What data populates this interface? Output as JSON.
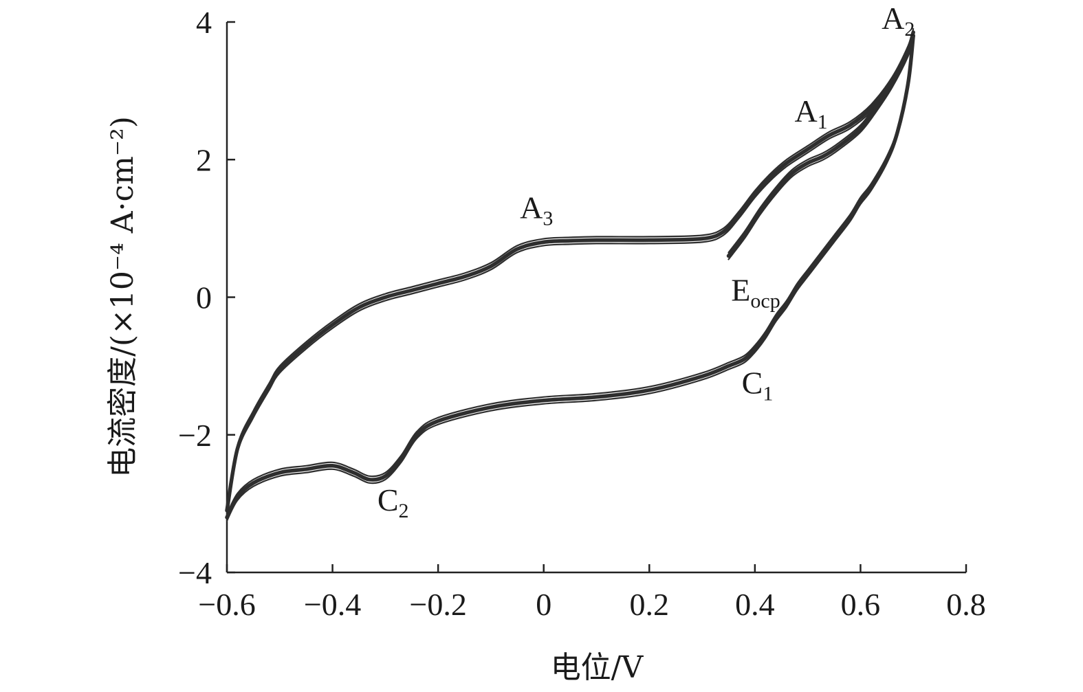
{
  "chart_data": {
    "type": "line",
    "title": "",
    "xlabel": "电位/V",
    "ylabel": "电流密度/(×10⁻⁴ A·cm⁻²)",
    "xlim": [
      -0.6,
      0.8
    ],
    "ylim": [
      -4,
      4
    ],
    "x_ticks": [
      "−0.6",
      "−0.4",
      "−0.2",
      "0",
      "0.2",
      "0.4",
      "0.6",
      "0.8"
    ],
    "y_ticks": [
      "−4",
      "−2",
      "0",
      "2",
      "4"
    ],
    "grid": false,
    "legend": "none",
    "series": [
      {
        "x": [
          0.35,
          0.38,
          0.41,
          0.44,
          0.47,
          0.5,
          0.53,
          0.56,
          0.6,
          0.63,
          0.66,
          0.69,
          0.7
        ],
        "y": [
          0.6,
          0.9,
          1.25,
          1.55,
          1.8,
          1.95,
          2.05,
          2.2,
          2.45,
          2.75,
          3.1,
          3.55,
          3.8
        ]
      },
      {
        "x": [
          0.7,
          0.69,
          0.67,
          0.65,
          0.62,
          0.6,
          0.58,
          0.55,
          0.52,
          0.5,
          0.48,
          0.46,
          0.44,
          0.42,
          0.4,
          0.38,
          0.35,
          0.3,
          0.2,
          0.1,
          0.0,
          -0.1,
          -0.2,
          -0.24,
          -0.27,
          -0.3,
          -0.33,
          -0.36,
          -0.4,
          -0.45,
          -0.5,
          -0.55,
          -0.58,
          -0.6
        ],
        "y": [
          3.8,
          3.1,
          2.4,
          2.0,
          1.6,
          1.4,
          1.15,
          0.85,
          0.55,
          0.35,
          0.15,
          -0.1,
          -0.3,
          -0.55,
          -0.75,
          -0.9,
          -1.0,
          -1.15,
          -1.35,
          -1.45,
          -1.5,
          -1.6,
          -1.8,
          -2.0,
          -2.35,
          -2.6,
          -2.65,
          -2.55,
          -2.45,
          -2.5,
          -2.55,
          -2.7,
          -2.9,
          -3.2
        ]
      },
      {
        "x": [
          -0.6,
          -0.58,
          -0.55,
          -0.52,
          -0.5,
          -0.45,
          -0.4,
          -0.35,
          -0.3,
          -0.25,
          -0.2,
          -0.15,
          -0.1,
          -0.05,
          0.0,
          0.05,
          0.1,
          0.2,
          0.3,
          0.34,
          0.37,
          0.4,
          0.43,
          0.46,
          0.5,
          0.54,
          0.58,
          0.62,
          0.66,
          0.69,
          0.7
        ],
        "y": [
          -3.1,
          -2.2,
          -1.7,
          -1.3,
          -1.05,
          -0.7,
          -0.4,
          -0.15,
          0.0,
          0.1,
          0.2,
          0.3,
          0.45,
          0.7,
          0.8,
          0.82,
          0.83,
          0.83,
          0.85,
          0.95,
          1.2,
          1.5,
          1.75,
          1.95,
          2.15,
          2.35,
          2.5,
          2.75,
          3.15,
          3.6,
          3.85
        ]
      }
    ],
    "annotations": [
      {
        "base": "A",
        "sub": "1",
        "x": 0.475,
        "y": 2.55
      },
      {
        "base": "A",
        "sub": "2",
        "x": 0.64,
        "y": 3.9
      },
      {
        "base": "A",
        "sub": "3",
        "x": -0.045,
        "y": 1.15
      },
      {
        "base": "C",
        "sub": "1",
        "x": 0.375,
        "y": -1.4
      },
      {
        "base": "C",
        "sub": "2",
        "x": -0.315,
        "y": -3.1
      },
      {
        "base": "E",
        "sub": "ocp",
        "x": 0.355,
        "y": -0.05
      }
    ]
  }
}
